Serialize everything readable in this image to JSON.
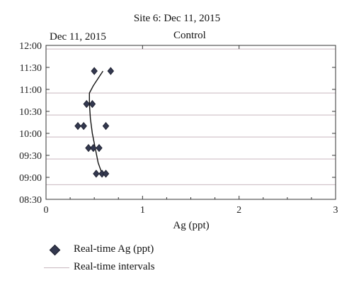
{
  "chart_data": {
    "type": "scatter",
    "title": "Site 6: Dec 11, 2015",
    "subtitle_left": "Dec 11, 2015",
    "subtitle_right": "Control",
    "xlabel": "Ag (ppt)",
    "ylabel": "",
    "xlim": [
      0,
      3
    ],
    "ylim": [
      "08:30",
      "12:00"
    ],
    "x_ticks": [
      "0",
      "1",
      "2",
      "3"
    ],
    "y_ticks": [
      "12:00",
      "11:30",
      "11:00",
      "10:30",
      "10:00",
      "09:30",
      "09:00",
      "08:30"
    ],
    "interval_times": [
      "08:50",
      "09:25",
      "09:55",
      "10:25",
      "10:55",
      "11:55"
    ],
    "series": [
      {
        "name": "Real-time Ag (ppt)",
        "marker": "diamond",
        "points": [
          {
            "x": 0.5,
            "y": "11:25"
          },
          {
            "x": 0.67,
            "y": "11:25"
          },
          {
            "x": 0.42,
            "y": "10:40"
          },
          {
            "x": 0.48,
            "y": "10:40"
          },
          {
            "x": 0.33,
            "y": "10:10"
          },
          {
            "x": 0.39,
            "y": "10:10"
          },
          {
            "x": 0.62,
            "y": "10:10"
          },
          {
            "x": 0.44,
            "y": "09:40"
          },
          {
            "x": 0.49,
            "y": "09:40"
          },
          {
            "x": 0.55,
            "y": "09:40"
          },
          {
            "x": 0.52,
            "y": "09:05"
          },
          {
            "x": 0.58,
            "y": "09:05"
          },
          {
            "x": 0.62,
            "y": "09:05"
          }
        ]
      },
      {
        "name": "Real-time intervals",
        "marker": "line"
      }
    ],
    "trend_line": [
      {
        "x": 0.59,
        "y": "11:25"
      },
      {
        "x": 0.54,
        "y": "11:15"
      },
      {
        "x": 0.49,
        "y": "11:05"
      },
      {
        "x": 0.45,
        "y": "10:55"
      },
      {
        "x": 0.45,
        "y": "10:40"
      },
      {
        "x": 0.46,
        "y": "10:20"
      },
      {
        "x": 0.48,
        "y": "10:00"
      },
      {
        "x": 0.51,
        "y": "09:40"
      },
      {
        "x": 0.54,
        "y": "09:20"
      },
      {
        "x": 0.58,
        "y": "09:05"
      }
    ],
    "colors": {
      "marker_fill": "#33384f",
      "marker_stroke": "#1a1c2a",
      "trend_line": "#111111",
      "interval_line": "#c9b8bf",
      "axis": "#333333"
    },
    "grid": false,
    "legend_position": "bottom-left"
  }
}
